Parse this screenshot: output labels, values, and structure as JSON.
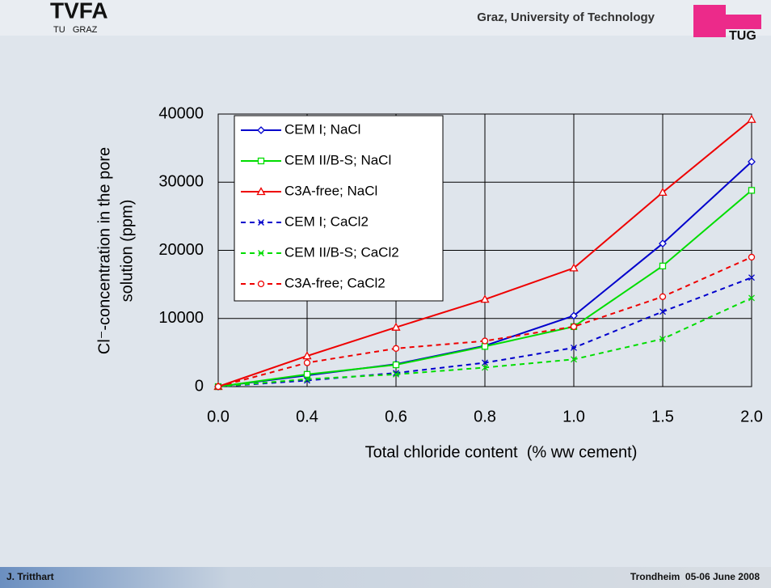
{
  "header": {
    "logo": "TVFA",
    "logo_sub": "TU   GRAZ",
    "institution": "Graz, University of Technology",
    "logo_right": "TUG"
  },
  "footer": {
    "author": "J. Tritthart",
    "event": "Trondheim  05-06 June 2008"
  },
  "chart_data": {
    "type": "line",
    "x_label": "Total chloride content  (% ww cement)",
    "y_label": [
      "Cl⁻-concentration in the pore",
      "solution (ppm)"
    ],
    "categories": [
      "0.0",
      "0.4",
      "0.6",
      "0.8",
      "1.0",
      "1.5",
      "2.0"
    ],
    "ylim": [
      0,
      40000
    ],
    "yticks": [
      0,
      10000,
      20000,
      30000,
      40000
    ],
    "grid": true,
    "legend": "top-left",
    "series": [
      {
        "name": "CEM I; NaCl",
        "color": "#0000cc",
        "style": "solid",
        "marker": "diamond",
        "values": [
          0,
          1650,
          3300,
          6000,
          10400,
          21000,
          33000
        ]
      },
      {
        "name": "CEM II/B-S; NaCl",
        "color": "#00dd00",
        "style": "solid",
        "marker": "square",
        "values": [
          0,
          1800,
          3200,
          5900,
          8800,
          17700,
          28800
        ]
      },
      {
        "name": "C3A-free; NaCl",
        "color": "#ee0000",
        "style": "solid",
        "marker": "triangle",
        "values": [
          0,
          4500,
          8700,
          12800,
          17400,
          28500,
          39200
        ]
      },
      {
        "name": "CEM I; CaCl2",
        "color": "#0000cc",
        "style": "dashed",
        "marker": "x",
        "values": [
          0,
          900,
          2000,
          3500,
          5700,
          11000,
          16000
        ]
      },
      {
        "name": "CEM II/B-S; CaCl2",
        "color": "#00dd00",
        "style": "dashed",
        "marker": "x",
        "values": [
          0,
          1100,
          1800,
          2800,
          4000,
          7000,
          13000
        ]
      },
      {
        "name": "C3A-free; CaCl2",
        "color": "#ee0000",
        "style": "dashed",
        "marker": "circle",
        "values": [
          0,
          3500,
          5600,
          6700,
          8800,
          13200,
          19000
        ]
      }
    ]
  }
}
